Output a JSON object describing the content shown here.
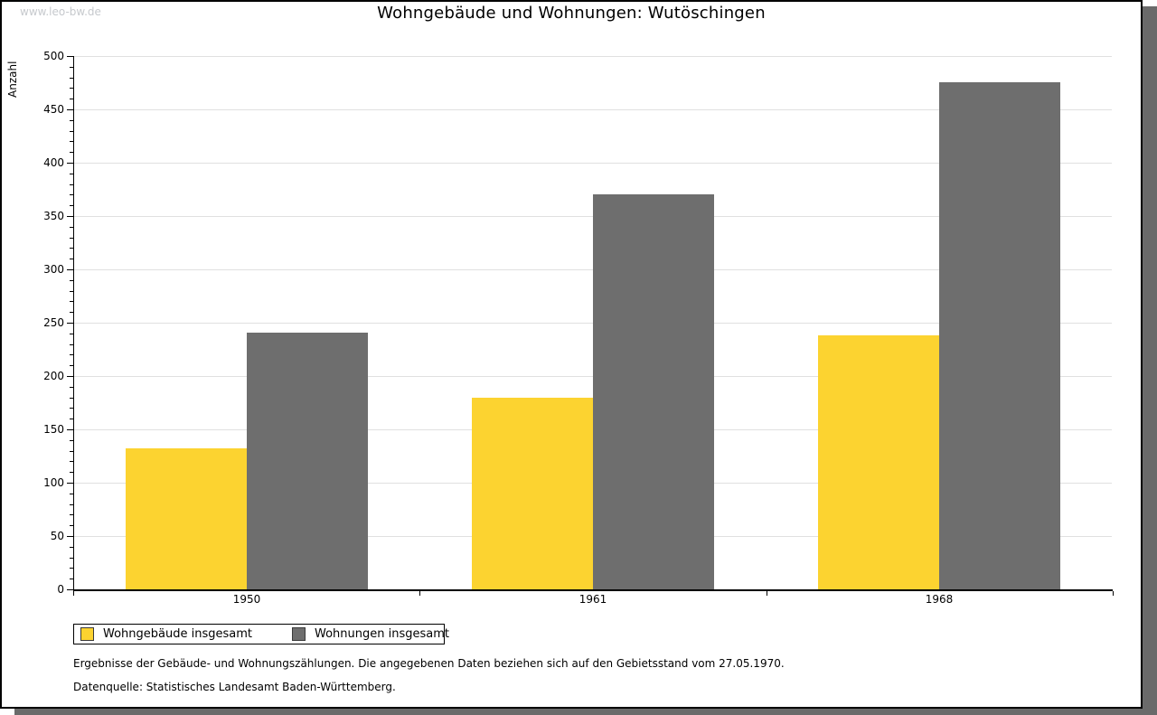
{
  "watermark": "www.leo-bw.de",
  "title": "Wohngebäude und Wohnungen: Wutöschingen",
  "chart_data": {
    "type": "bar",
    "title": "Wohngebäude und Wohnungen: Wutöschingen",
    "categories": [
      "1950",
      "1961",
      "1968"
    ],
    "series": [
      {
        "name": "Wohngebäude insgesamt",
        "color": "#FCD330",
        "values": [
          132,
          180,
          238
        ]
      },
      {
        "name": "Wohnungen insgesamt",
        "color": "#6E6E6E",
        "values": [
          241,
          370,
          475
        ]
      }
    ],
    "xlabel": "",
    "ylabel": "Anzahl",
    "ylim": [
      0,
      500
    ],
    "ytick_step": 50,
    "yminor_step": 10,
    "grid": true,
    "legend_position": "bottom-left"
  },
  "footnotes": [
    "Ergebnisse der Gebäude- und Wohnungszählungen. Die angegebenen Daten beziehen sich auf den Gebietsstand vom 27.05.1970.",
    "Datenquelle: Statistisches Landesamt Baden-Württemberg."
  ]
}
